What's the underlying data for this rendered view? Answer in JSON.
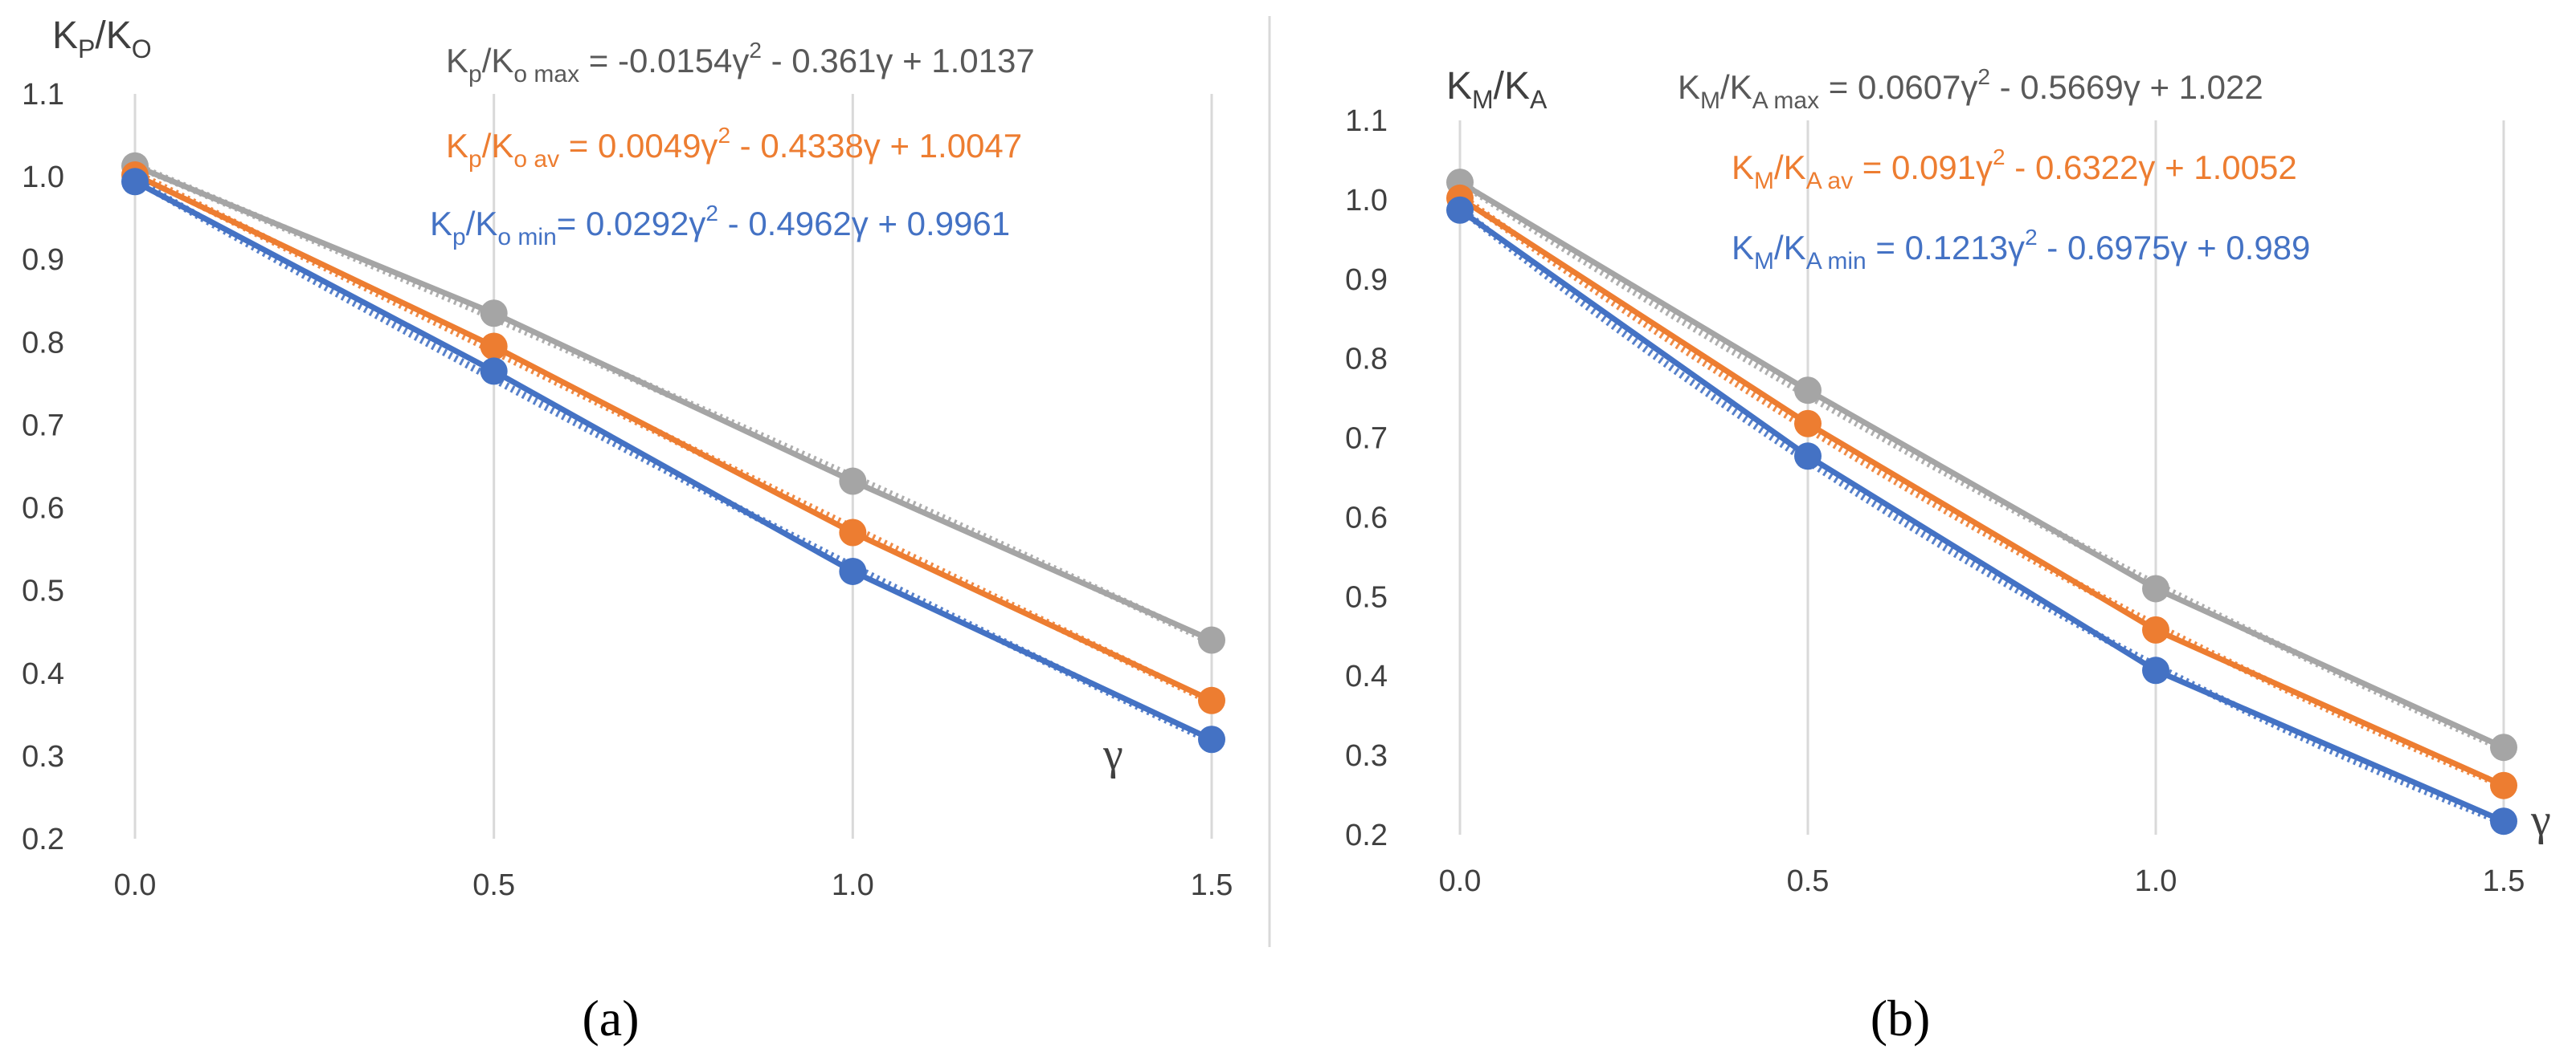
{
  "chart_data": [
    {
      "type": "line",
      "panel_label": "(a)",
      "ylabel": {
        "base": "K",
        "sub1": "P",
        "mid": "/K",
        "sub2": "O"
      },
      "xlabel": "γ",
      "x": [
        0.0,
        0.5,
        1.0,
        1.5
      ],
      "xticks": [
        "0.0",
        "0.5",
        "1.0",
        "1.5"
      ],
      "ylim": [
        0.2,
        1.1
      ],
      "yticks": [
        "0.2",
        "0.3",
        "0.4",
        "0.5",
        "0.6",
        "0.7",
        "0.8",
        "0.9",
        "1.0",
        "1.1"
      ],
      "grid": "vertical",
      "series": [
        {
          "name": "max",
          "color": "#a5a5a5",
          "values": [
            1.013,
            0.835,
            0.632,
            0.44
          ],
          "coef": [
            -0.0154,
            -0.361,
            1.0137
          ],
          "equation": {
            "base": "K",
            "sub1": "p",
            "mid": "/K",
            "sub2": "o max",
            "text": " = -0.0154γ",
            "sup": "2",
            "rest": " - 0.361γ + 1.0137"
          }
        },
        {
          "name": "av",
          "color": "#ed7d31",
          "values": [
            1.002,
            0.795,
            0.57,
            0.367
          ],
          "coef": [
            0.0049,
            -0.4338,
            1.0047
          ],
          "equation": {
            "base": "K",
            "sub1": "p",
            "mid": "/K",
            "sub2": "o av",
            "text": " = 0.0049γ",
            "sup": "2",
            "rest": " - 0.4338γ + 1.0047"
          }
        },
        {
          "name": "min",
          "color": "#4472c4",
          "values": [
            0.994,
            0.765,
            0.523,
            0.32
          ],
          "coef": [
            0.0292,
            -0.4962,
            0.9961
          ],
          "equation": {
            "base": "K",
            "sub1": "p",
            "mid": "/K",
            "sub2": "o min",
            "text": "= 0.0292γ",
            "sup": "2",
            "rest": " - 0.4962γ + 0.9961"
          }
        }
      ]
    },
    {
      "type": "line",
      "panel_label": "(b)",
      "ylabel": {
        "base": "K",
        "sub1": "M",
        "mid": "/K",
        "sub2": "A"
      },
      "xlabel": "γ",
      "x": [
        0.0,
        0.5,
        1.0,
        1.5
      ],
      "xticks": [
        "0.0",
        "0.5",
        "1.0",
        "1.5"
      ],
      "ylim": [
        0.2,
        1.1
      ],
      "yticks": [
        "0.2",
        "0.3",
        "0.4",
        "0.5",
        "0.6",
        "0.7",
        "0.8",
        "0.9",
        "1.0",
        "1.1"
      ],
      "grid": "vertical",
      "series": [
        {
          "name": "max",
          "color": "#a5a5a5",
          "values": [
            1.022,
            0.76,
            0.51,
            0.31
          ],
          "coef": [
            0.0607,
            -0.5669,
            1.022
          ],
          "equation": {
            "base": "K",
            "sub1": "M",
            "mid": "/K",
            "sub2": "A max",
            "text": " = 0.0607γ",
            "sup": "2",
            "rest": " - 0.5669γ + 1.022"
          }
        },
        {
          "name": "av",
          "color": "#ed7d31",
          "values": [
            1.002,
            0.718,
            0.458,
            0.262
          ],
          "coef": [
            0.091,
            -0.6322,
            1.0052
          ],
          "equation": {
            "base": "K",
            "sub1": "M",
            "mid": "/K",
            "sub2": "A av",
            "text": " = 0.091γ",
            "sup": "2",
            "rest": " - 0.6322γ + 1.0052"
          }
        },
        {
          "name": "min",
          "color": "#4472c4",
          "values": [
            0.987,
            0.677,
            0.407,
            0.217
          ],
          "coef": [
            0.1213,
            -0.6975,
            0.989
          ],
          "equation": {
            "base": "K",
            "sub1": "M",
            "mid": "/K",
            "sub2": "A min",
            "text": " = 0.1213γ",
            "sup": "2",
            "rest": " - 0.6975γ + 0.989"
          }
        }
      ]
    }
  ]
}
